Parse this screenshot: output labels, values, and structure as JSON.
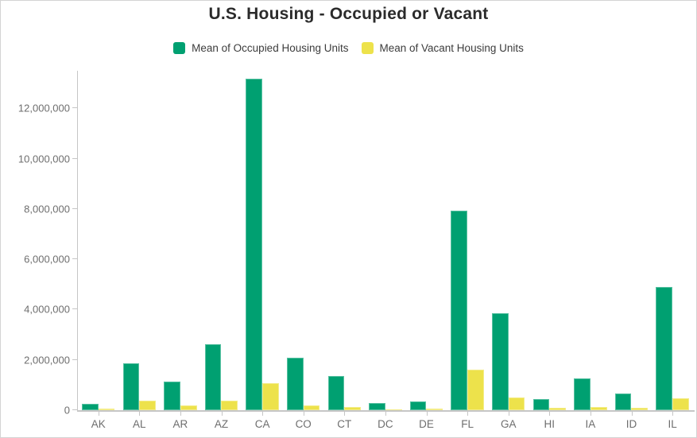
{
  "window": {
    "background": "#ffffff",
    "border_color": "#d4d4d4",
    "axis_color": "#c6c6c6",
    "axis_label_color": "#6e6e6e",
    "title_color": "#2b2b2b"
  },
  "chart_data": {
    "type": "bar",
    "title": "U.S. Housing - Occupied or Vacant",
    "xlabel": "",
    "ylabel": "",
    "categories": [
      "AK",
      "AL",
      "AR",
      "AZ",
      "CA",
      "CO",
      "CT",
      "DC",
      "DE",
      "FL",
      "GA",
      "HI",
      "IA",
      "ID",
      "IL"
    ],
    "series": [
      {
        "name": "Mean of Occupied Housing Units",
        "color": "#00a071",
        "values": [
          250000,
          1870000,
          1150000,
          2610000,
          13200000,
          2100000,
          1370000,
          270000,
          350000,
          7950000,
          3850000,
          450000,
          1270000,
          650000,
          4900000
        ]
      },
      {
        "name": "Mean of Vacant Housing Units",
        "color": "#ede24b",
        "values": [
          70000,
          370000,
          180000,
          380000,
          1080000,
          190000,
          130000,
          35000,
          65000,
          1610000,
          500000,
          95000,
          135000,
          90000,
          480000
        ]
      }
    ],
    "ylim": [
      0,
      13500000
    ],
    "ytick_step": 2000000,
    "ytick_labels": [
      "0",
      "2,000,000",
      "4,000,000",
      "6,000,000",
      "8,000,000",
      "10,000,000",
      "12,000,000"
    ],
    "grid": false,
    "legend_position": "top-center"
  }
}
